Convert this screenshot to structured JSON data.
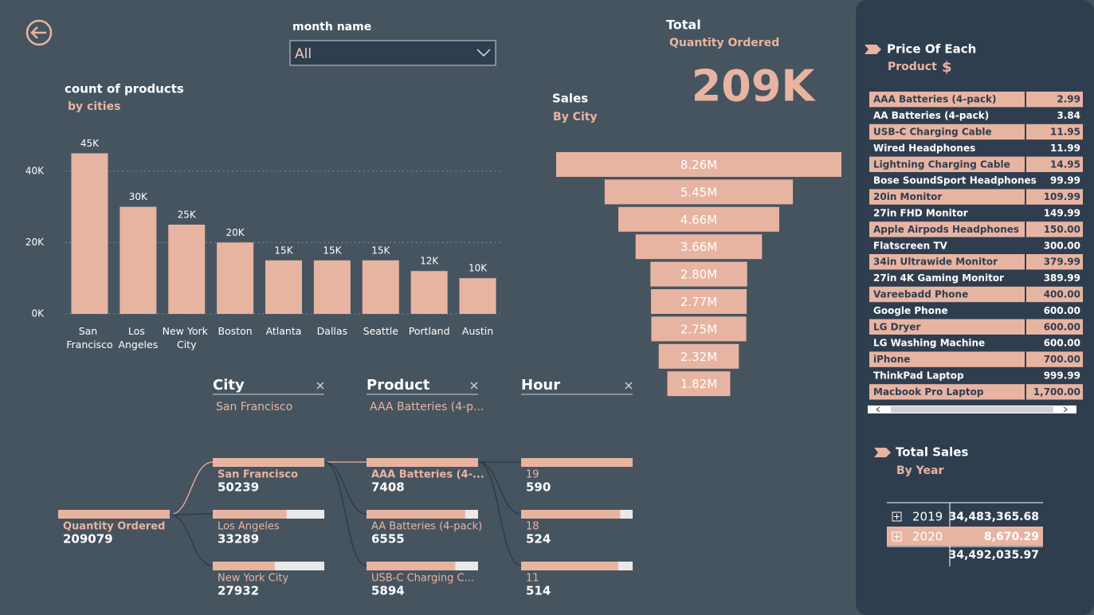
{
  "filter": {
    "label": "month name",
    "value": "All"
  },
  "kpi": {
    "title": "Total",
    "subtitle": "Quantity Ordered",
    "value": "209K"
  },
  "chart_data": [
    {
      "type": "bar",
      "title": "count of products",
      "subtitle": "by cities",
      "categories": [
        "San Francisco",
        "Los Angeles",
        "New York City",
        "Boston",
        "Atlanta",
        "Dallas",
        "Seattle",
        "Portland",
        "Austin"
      ],
      "values": [
        45000,
        30000,
        25000,
        20000,
        15000,
        15000,
        15000,
        12000,
        10000
      ],
      "value_labels": [
        "45K",
        "30K",
        "25K",
        "20K",
        "15K",
        "15K",
        "15K",
        "12K",
        "10K"
      ],
      "color": "#e8b4a2",
      "ylim": [
        0,
        50000
      ],
      "yticks": [
        {
          "value": 0,
          "label": "0K"
        },
        {
          "value": 20000,
          "label": "20K"
        },
        {
          "value": 40000,
          "label": "40K"
        }
      ],
      "grid": true
    },
    {
      "type": "funnel",
      "title": "Sales",
      "subtitle": "By City",
      "values": [
        8260000,
        5450000,
        4660000,
        3660000,
        2800000,
        2770000,
        2750000,
        2320000,
        1820000
      ],
      "value_labels": [
        "8.26M",
        "5.45M",
        "4.66M",
        "3.66M",
        "2.80M",
        "2.77M",
        "2.75M",
        "2.32M",
        "1.82M"
      ],
      "color": "#e8b4a2"
    }
  ],
  "price_table": {
    "title": "Price Of Each",
    "subtitle": "Product",
    "currency": "$",
    "rows": [
      [
        "AAA Batteries (4-pack)",
        "2.99"
      ],
      [
        "AA Batteries (4-pack)",
        "3.84"
      ],
      [
        "USB-C Charging Cable",
        "11.95"
      ],
      [
        "Wired Headphones",
        "11.99"
      ],
      [
        "Lightning Charging Cable",
        "14.95"
      ],
      [
        "Bose SoundSport Headphones",
        "99.99"
      ],
      [
        "20in Monitor",
        "109.99"
      ],
      [
        "27in FHD Monitor",
        "149.99"
      ],
      [
        "Apple Airpods Headphones",
        "150.00"
      ],
      [
        "Flatscreen TV",
        "300.00"
      ],
      [
        "34in Ultrawide Monitor",
        "379.99"
      ],
      [
        "27in 4K Gaming Monitor",
        "389.99"
      ],
      [
        "Vareebadd Phone",
        "400.00"
      ],
      [
        "Google Phone",
        "600.00"
      ],
      [
        "LG Dryer",
        "600.00"
      ],
      [
        "LG Washing Machine",
        "600.00"
      ],
      [
        "iPhone",
        "700.00"
      ],
      [
        "ThinkPad Laptop",
        "999.99"
      ],
      [
        "Macbook Pro Laptop",
        "1,700.00"
      ]
    ]
  },
  "year_table": {
    "title": "Total Sales",
    "subtitle": "By Year",
    "rows": [
      [
        "2019",
        "34,483,365.68"
      ],
      [
        "2020",
        "8,670.29"
      ]
    ],
    "total": "34,492,035.97"
  },
  "decomposition": {
    "levels": [
      {
        "title": "City",
        "selected": "San Francisco"
      },
      {
        "title": "Product",
        "selected": "AAA Batteries (4-p..."
      },
      {
        "title": "Hour"
      }
    ],
    "root": {
      "label": "Quantity Ordered",
      "value": 209079
    },
    "columns": [
      [
        {
          "label": "San Francisco",
          "value": 50239
        },
        {
          "label": "Los Angeles",
          "value": 33289
        },
        {
          "label": "New York City",
          "value": 27932
        }
      ],
      [
        {
          "label": "AAA Batteries (4-...",
          "value": 7408
        },
        {
          "label": "AA Batteries (4-pack)",
          "value": 6555
        },
        {
          "label": "USB-C Charging C...",
          "value": 5894
        }
      ],
      [
        {
          "label": "19",
          "value": 590
        },
        {
          "label": "18",
          "value": 524
        },
        {
          "label": "11",
          "value": 514
        }
      ]
    ]
  }
}
